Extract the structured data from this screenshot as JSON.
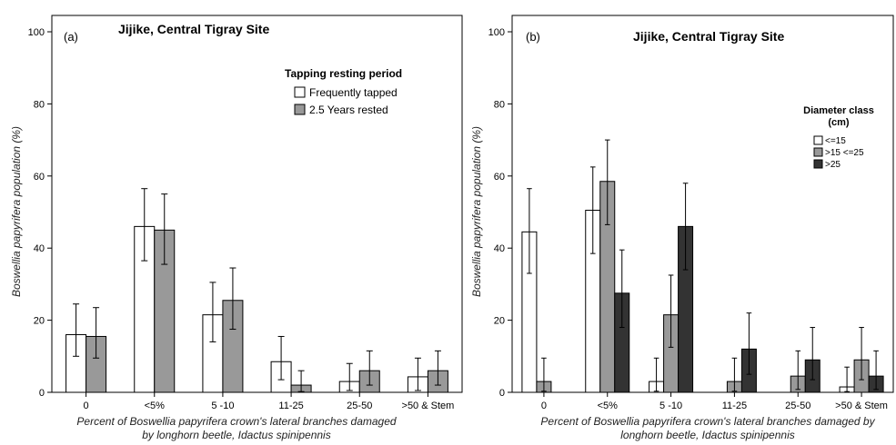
{
  "chart_data": [
    {
      "type": "bar",
      "panel_label": "(a)",
      "title": "Jijike, Central Tigray Site",
      "ylabel": "Boswellia papyrifera population (%)",
      "xlabel_line1": "Percent of Boswellia papyrifera crown's lateral branches damaged",
      "xlabel_line2": "by longhorn beetle, Idactus spinipennis",
      "ylim": [
        0,
        100
      ],
      "yticks": [
        "0",
        "20",
        "40",
        "60",
        "80",
        "100"
      ],
      "categories": [
        "0",
        "<5%",
        "5 -10",
        "11-25",
        "25-50",
        ">50 & Stem"
      ],
      "legend_title": "Tapping resting period",
      "legend_position": "top-right",
      "series": [
        {
          "name": "Frequently tapped",
          "color": "#ffffff",
          "values": [
            16,
            46,
            21.5,
            8.5,
            3,
            4.3
          ],
          "err_low": [
            10,
            36.5,
            14,
            3.5,
            0.5,
            0.5
          ],
          "err_high": [
            24.5,
            56.5,
            30.5,
            15.5,
            8,
            9.5
          ]
        },
        {
          "name": "2.5 Years rested",
          "color": "#999999",
          "values": [
            15.5,
            45,
            25.5,
            2,
            6,
            6
          ],
          "err_low": [
            9.5,
            35.5,
            17.5,
            0.2,
            2,
            2
          ],
          "err_high": [
            23.5,
            55,
            34.5,
            6,
            11.5,
            11.5
          ]
        }
      ]
    },
    {
      "type": "bar",
      "panel_label": "(b)",
      "title": "Jijike, Central Tigray Site",
      "ylabel": "Boswellia papyrifera population (%)",
      "xlabel_line1": "Percent of Boswellia papyrifera crown's lateral branches damaged by",
      "xlabel_line2": "longhorn beetle, Idactus spinipennis",
      "ylim": [
        0,
        100
      ],
      "yticks": [
        "0",
        "20",
        "40",
        "60",
        "80",
        "100"
      ],
      "categories": [
        "0",
        "<5%",
        "5 -10",
        "11-25",
        "25-50",
        ">50 & Stem"
      ],
      "legend_title_line1": "Diameter class",
      "legend_title_line2": "(cm)",
      "legend_position": "right",
      "series": [
        {
          "name": "<=15",
          "color": "#ffffff",
          "values": [
            44.5,
            50.5,
            3,
            0,
            0,
            1.5
          ],
          "err_low": [
            33,
            38.5,
            0.3,
            null,
            null,
            0.2
          ],
          "err_high": [
            56.5,
            62.5,
            9.5,
            null,
            null,
            7
          ]
        },
        {
          "name": ">15 <=25",
          "color": "#999999",
          "values": [
            3,
            58.5,
            21.5,
            3,
            4.5,
            9
          ],
          "err_low": [
            0.3,
            46.5,
            12.5,
            0.3,
            0.8,
            3.5
          ],
          "err_high": [
            9.5,
            70,
            32.5,
            9.5,
            11.5,
            18
          ]
        },
        {
          "name": ">25",
          "color": "#333333",
          "values": [
            0,
            27.5,
            46,
            12,
            9,
            4.5
          ],
          "err_low": [
            null,
            18,
            34,
            5,
            3.5,
            0.8
          ],
          "err_high": [
            null,
            39.5,
            58,
            22,
            18,
            11.5
          ]
        }
      ]
    }
  ]
}
